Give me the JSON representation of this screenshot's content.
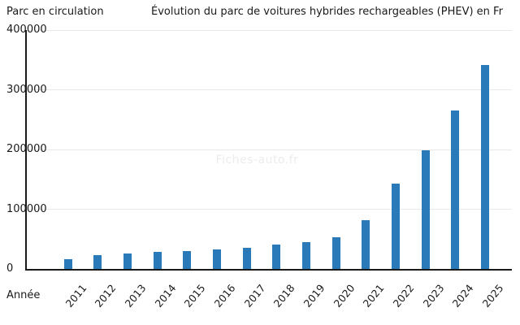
{
  "chart_data": {
    "type": "bar",
    "title": "Évolution du parc de voitures hybrides rechargeables (PHEV) en Fr",
    "y_axis_title": "Parc en circulation",
    "x_axis_title": "Année",
    "watermark": "Fiches-auto.fr",
    "categories": [
      "2011",
      "2012",
      "2013",
      "2014",
      "2015",
      "2016",
      "2017",
      "2018",
      "2019",
      "2020",
      "2021",
      "2022",
      "2023",
      "2024",
      "2025"
    ],
    "values": [
      17000,
      23500,
      26000,
      28000,
      30000,
      33000,
      36000,
      40500,
      45500,
      53500,
      81000,
      143000,
      199000,
      265000,
      341000
    ],
    "ylim": [
      0,
      400000
    ],
    "yticks": [
      0,
      100000,
      200000,
      300000,
      400000
    ],
    "ytick_labels": [
      "0",
      "100000",
      "200000",
      "300000",
      "400000"
    ],
    "grid": "horizontal",
    "legend": "none",
    "bar_color": "#2a7ab9",
    "axis_color": "#1a1a1a",
    "gridline_color": "#e8e8e8",
    "watermark_color": "#ececec"
  }
}
